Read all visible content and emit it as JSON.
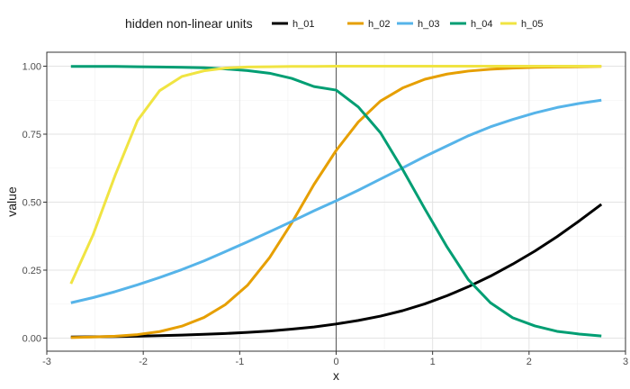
{
  "chart_data": {
    "type": "line",
    "title": "",
    "xlabel": "x",
    "ylabel": "value",
    "xlim": [
      -3,
      3
    ],
    "ylim": [
      0,
      1
    ],
    "xticks": [
      -3,
      -2,
      -1,
      0,
      1,
      2,
      3
    ],
    "xtick_labels": [
      "-3",
      "-2",
      "-1",
      "0",
      "1",
      "2",
      "3"
    ],
    "yticks": [
      0,
      0.25,
      0.5,
      0.75,
      1
    ],
    "ytick_labels": [
      "0.00",
      "0.25",
      "0.50",
      "0.75",
      "1.00"
    ],
    "grid": true,
    "vline_x": 0,
    "legend": {
      "title": "hidden non-linear units",
      "position": "top"
    },
    "x": [
      -2.75,
      -2.52,
      -2.29,
      -2.06,
      -1.83,
      -1.6,
      -1.37,
      -1.15,
      -0.92,
      -0.69,
      -0.46,
      -0.23,
      0.0,
      0.23,
      0.46,
      0.69,
      0.92,
      1.15,
      1.37,
      1.6,
      1.83,
      2.06,
      2.29,
      2.52,
      2.75
    ],
    "series": [
      {
        "name": "h_01",
        "color": "#000000",
        "values": [
          0.004,
          0.005,
          0.006,
          0.007,
          0.009,
          0.011,
          0.014,
          0.017,
          0.021,
          0.026,
          0.033,
          0.041,
          0.052,
          0.065,
          0.081,
          0.101,
          0.126,
          0.156,
          0.189,
          0.228,
          0.272,
          0.32,
          0.373,
          0.431,
          0.492
        ]
      },
      {
        "name": "h_02",
        "color": "#E69F00",
        "values": [
          0.002,
          0.004,
          0.007,
          0.013,
          0.024,
          0.044,
          0.076,
          0.123,
          0.194,
          0.296,
          0.424,
          0.565,
          0.69,
          0.795,
          0.872,
          0.92,
          0.952,
          0.971,
          0.982,
          0.989,
          0.993,
          0.996,
          0.997,
          0.998,
          0.999
        ]
      },
      {
        "name": "h_03",
        "color": "#56B4E9",
        "values": [
          0.13,
          0.149,
          0.171,
          0.196,
          0.223,
          0.252,
          0.284,
          0.318,
          0.354,
          0.391,
          0.429,
          0.468,
          0.505,
          0.544,
          0.585,
          0.626,
          0.668,
          0.707,
          0.744,
          0.777,
          0.804,
          0.828,
          0.848,
          0.863,
          0.875
        ]
      },
      {
        "name": "h_04",
        "color": "#009E73",
        "values": [
          0.999,
          0.999,
          0.999,
          0.998,
          0.997,
          0.996,
          0.994,
          0.99,
          0.984,
          0.974,
          0.955,
          0.925,
          0.912,
          0.85,
          0.755,
          0.62,
          0.475,
          0.335,
          0.215,
          0.13,
          0.075,
          0.045,
          0.025,
          0.015,
          0.008
        ]
      },
      {
        "name": "h_05",
        "color": "#F0E442",
        "values": [
          0.2,
          0.38,
          0.6,
          0.8,
          0.91,
          0.962,
          0.983,
          0.993,
          0.997,
          0.998,
          0.999,
          0.999,
          1.0,
          1.0,
          1.0,
          1.0,
          1.0,
          1.0,
          1.0,
          1.0,
          1.0,
          1.0,
          1.0,
          1.0,
          1.0
        ]
      }
    ]
  }
}
